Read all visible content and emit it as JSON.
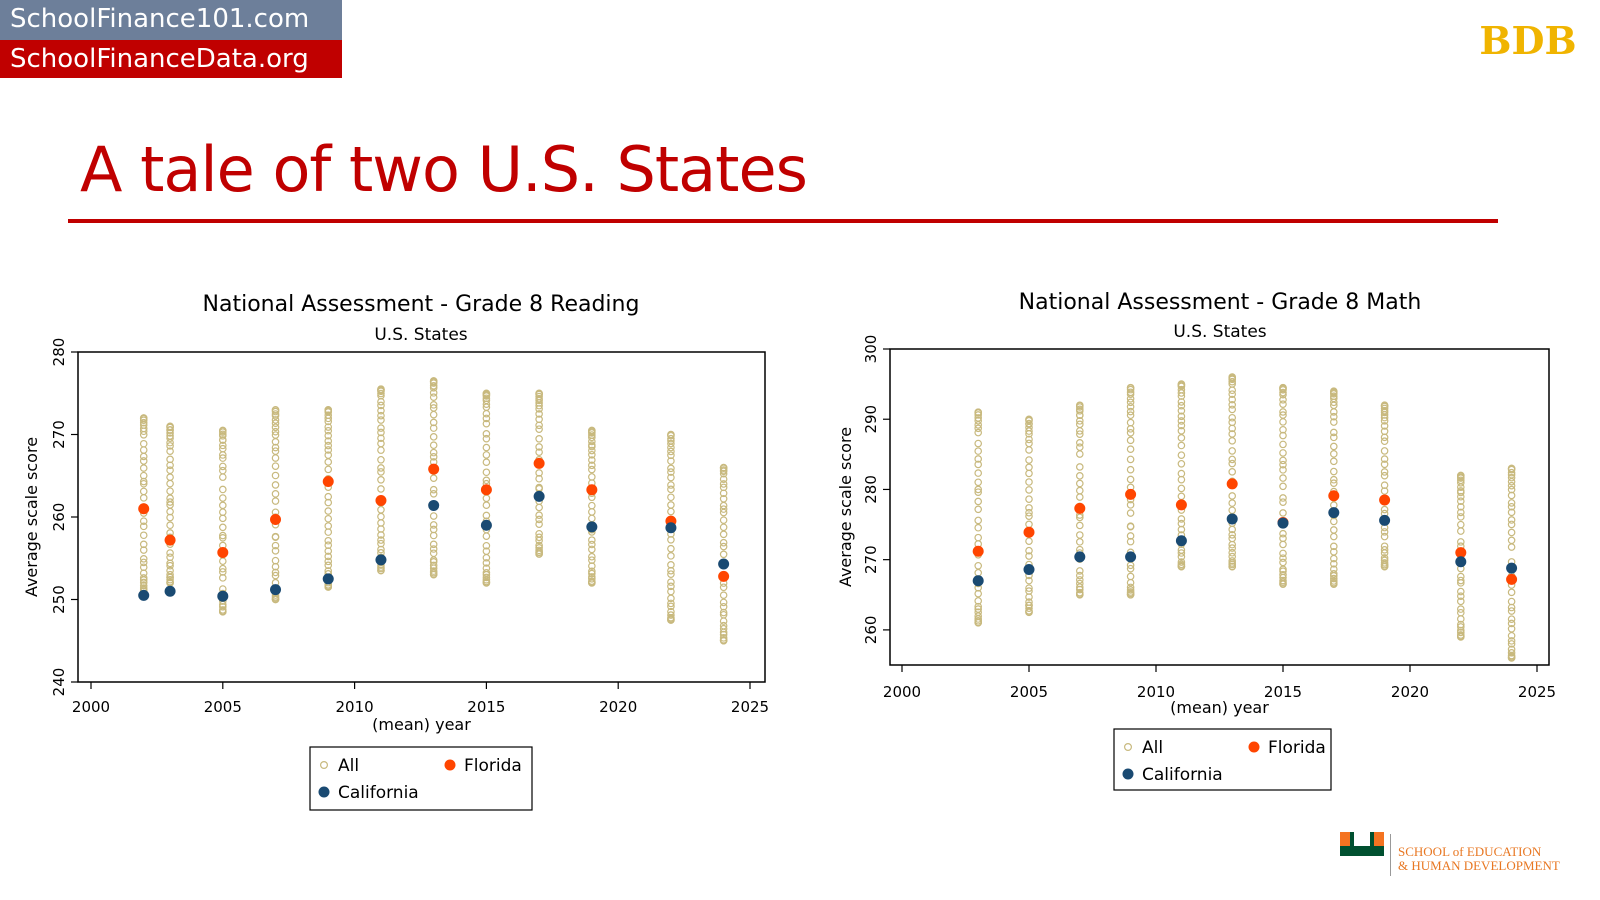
{
  "banner": {
    "site1": "SchoolFinance101.com",
    "site2": "SchoolFinanceData.org"
  },
  "slide": {
    "title": "A tale of two U.S. States"
  },
  "logo": {
    "letters": "BDB"
  },
  "affiliation": {
    "line1": "SCHOOL of EDUCATION",
    "line2": "& HUMAN DEVELOPMENT"
  },
  "colors": {
    "all": "#c8b97e",
    "florida": "#ff4500",
    "california": "#1a4a72",
    "accent": "#c00000"
  },
  "chart_data": [
    {
      "type": "scatter",
      "title": "National Assessment - Grade 8 Reading",
      "subtitle": "U.S. States",
      "xlabel": "(mean) year",
      "ylabel": "Average scale score",
      "xlim": [
        2000,
        2025
      ],
      "ylim": [
        240,
        280
      ],
      "xticks": [
        "2000",
        "2005",
        "2010",
        "2015",
        "2020",
        "2025"
      ],
      "yticks": [
        "240",
        "250",
        "260",
        "270",
        "280"
      ],
      "legend": [
        "All",
        "Florida",
        "California"
      ],
      "legend_position": "bottom",
      "all_states_range": {
        "x": [
          2002,
          2003,
          2005,
          2007,
          2009,
          2011,
          2013,
          2015,
          2017,
          2019,
          2022,
          2024
        ],
        "min": [
          251,
          252,
          248.5,
          250,
          251.5,
          253.5,
          253,
          252,
          255.5,
          252,
          247.5,
          245
        ],
        "max": [
          272,
          271,
          270.5,
          273,
          273,
          275.5,
          276.5,
          275,
          275,
          270.5,
          270,
          266
        ]
      },
      "series": [
        {
          "name": "Florida",
          "x": [
            2002,
            2003,
            2005,
            2007,
            2009,
            2011,
            2013,
            2015,
            2017,
            2019,
            2022,
            2024
          ],
          "values": [
            261,
            257.2,
            255.7,
            259.7,
            264.3,
            262,
            265.8,
            263.3,
            266.5,
            263.3,
            259.5,
            252.8
          ]
        },
        {
          "name": "California",
          "x": [
            2002,
            2003,
            2005,
            2007,
            2009,
            2011,
            2013,
            2015,
            2017,
            2019,
            2022,
            2024
          ],
          "values": [
            250.5,
            251,
            250.4,
            251.2,
            252.5,
            254.8,
            261.4,
            259,
            262.5,
            258.8,
            258.7,
            254.3
          ]
        }
      ]
    },
    {
      "type": "scatter",
      "title": "National Assessment - Grade 8 Math",
      "subtitle": "U.S. States",
      "xlabel": "(mean) year",
      "ylabel": "Average scale score",
      "xlim": [
        2000,
        2025
      ],
      "ylim": [
        255,
        300
      ],
      "xticks": [
        "2000",
        "2005",
        "2010",
        "2015",
        "2020",
        "2025"
      ],
      "yticks": [
        "260",
        "270",
        "280",
        "290",
        "300"
      ],
      "legend": [
        "All",
        "Florida",
        "California"
      ],
      "legend_position": "bottom",
      "all_states_range": {
        "x": [
          2003,
          2005,
          2007,
          2009,
          2011,
          2013,
          2015,
          2017,
          2019,
          2022,
          2024
        ],
        "min": [
          261,
          262.5,
          265,
          265,
          269,
          269,
          266.5,
          266.5,
          269,
          259,
          256
        ],
        "max": [
          291,
          290,
          292,
          294.5,
          295,
          296,
          294.5,
          294,
          292,
          282,
          283
        ]
      },
      "series": [
        {
          "name": "Florida",
          "x": [
            2003,
            2005,
            2007,
            2009,
            2011,
            2013,
            2015,
            2017,
            2019,
            2022,
            2024
          ],
          "values": [
            271.2,
            273.9,
            277.3,
            279.3,
            277.8,
            280.8,
            275.3,
            279.1,
            278.5,
            271,
            267.2
          ]
        },
        {
          "name": "California",
          "x": [
            2003,
            2005,
            2007,
            2009,
            2011,
            2013,
            2015,
            2017,
            2019,
            2022,
            2024
          ],
          "values": [
            267,
            268.6,
            270.4,
            270.4,
            272.7,
            275.8,
            275.2,
            276.7,
            275.6,
            269.7,
            268.8
          ]
        }
      ]
    }
  ]
}
